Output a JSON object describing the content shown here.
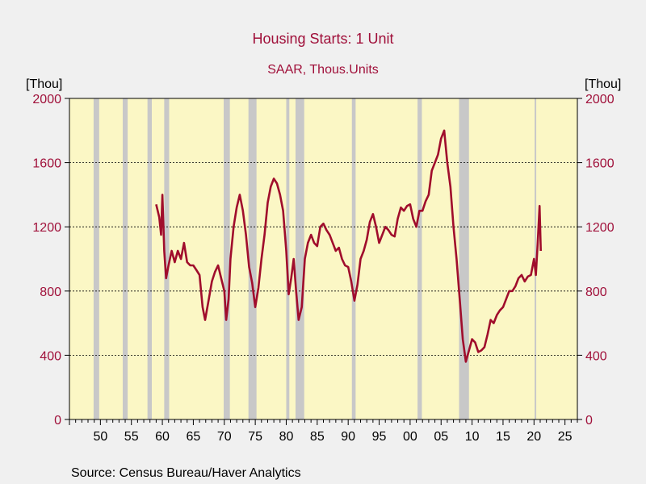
{
  "chart_data": {
    "type": "line",
    "title": "Housing Starts: 1 Unit",
    "subtitle": "SAAR, Thous.Units",
    "ylabel_left": "[Thou]",
    "ylabel_right": "[Thou]",
    "ylim": [
      0,
      2000
    ],
    "yticks": [
      0,
      400,
      800,
      1200,
      1600,
      2000
    ],
    "ytick_labels": [
      "0",
      "400",
      "800",
      "1200",
      "1600",
      "2000"
    ],
    "xlim": [
      1945,
      2027
    ],
    "xticks": [
      1950,
      1955,
      1960,
      1965,
      1970,
      1975,
      1980,
      1985,
      1990,
      1995,
      2000,
      2005,
      2010,
      2015,
      2020,
      2025
    ],
    "xtick_labels": [
      "50",
      "55",
      "60",
      "65",
      "70",
      "75",
      "80",
      "85",
      "90",
      "95",
      "00",
      "05",
      "10",
      "15",
      "20",
      "25"
    ],
    "grid": "horizontal-dotted",
    "recessions": [
      [
        1948.9,
        1949.8
      ],
      [
        1953.6,
        1954.4
      ],
      [
        1957.6,
        1958.3
      ],
      [
        1960.3,
        1961.1
      ],
      [
        1969.9,
        1970.9
      ],
      [
        1973.9,
        1975.2
      ],
      [
        1980.0,
        1980.5
      ],
      [
        1981.5,
        1982.9
      ],
      [
        1990.6,
        1991.2
      ],
      [
        2001.2,
        2001.9
      ],
      [
        2007.9,
        2009.5
      ],
      [
        2020.1,
        2020.3
      ]
    ],
    "series": [
      {
        "name": "",
        "x": [
          1959.0,
          1959.5,
          1959.8,
          1960.0,
          1960.3,
          1960.6,
          1961.0,
          1961.5,
          1962.0,
          1962.5,
          1963.0,
          1963.5,
          1964.0,
          1964.5,
          1965.0,
          1965.5,
          1966.0,
          1966.5,
          1966.9,
          1967.5,
          1968.0,
          1968.5,
          1969.0,
          1969.5,
          1970.0,
          1970.3,
          1970.7,
          1971.0,
          1971.5,
          1972.0,
          1972.5,
          1973.0,
          1973.5,
          1974.0,
          1974.5,
          1975.0,
          1975.5,
          1976.0,
          1976.5,
          1977.0,
          1977.5,
          1978.0,
          1978.5,
          1979.0,
          1979.5,
          1980.0,
          1980.4,
          1980.8,
          1981.2,
          1981.6,
          1982.0,
          1982.5,
          1983.0,
          1983.5,
          1984.0,
          1984.5,
          1985.0,
          1985.5,
          1986.0,
          1986.5,
          1987.0,
          1987.5,
          1988.0,
          1988.5,
          1989.0,
          1989.5,
          1990.0,
          1990.5,
          1991.0,
          1991.5,
          1992.0,
          1992.5,
          1993.0,
          1993.5,
          1994.0,
          1994.5,
          1995.0,
          1995.5,
          1996.0,
          1996.5,
          1997.0,
          1997.5,
          1998.0,
          1998.5,
          1999.0,
          1999.5,
          2000.0,
          2000.5,
          2001.0,
          2001.5,
          2002.0,
          2002.5,
          2003.0,
          2003.5,
          2004.0,
          2004.5,
          2005.0,
          2005.5,
          2006.0,
          2006.5,
          2007.0,
          2007.5,
          2008.0,
          2008.5,
          2009.0,
          2009.5,
          2010.0,
          2010.5,
          2011.0,
          2011.5,
          2012.0,
          2012.5,
          2013.0,
          2013.5,
          2014.0,
          2014.5,
          2015.0,
          2015.5,
          2016.0,
          2016.5,
          2017.0,
          2017.5,
          2018.0,
          2018.5,
          2019.0,
          2019.5,
          2020.0,
          2020.3,
          2020.6,
          2020.9,
          2021.1
        ],
        "values": [
          1340,
          1260,
          1150,
          1400,
          1050,
          880,
          960,
          1050,
          980,
          1050,
          1000,
          1100,
          980,
          960,
          960,
          930,
          900,
          700,
          620,
          750,
          860,
          920,
          960,
          880,
          800,
          620,
          750,
          1000,
          1200,
          1320,
          1400,
          1300,
          1150,
          950,
          850,
          700,
          820,
          1000,
          1150,
          1350,
          1450,
          1500,
          1470,
          1400,
          1300,
          1050,
          780,
          880,
          1000,
          800,
          620,
          700,
          1000,
          1100,
          1150,
          1100,
          1080,
          1200,
          1220,
          1180,
          1150,
          1100,
          1050,
          1070,
          1000,
          960,
          950,
          860,
          740,
          840,
          1000,
          1050,
          1120,
          1230,
          1280,
          1200,
          1100,
          1150,
          1200,
          1180,
          1150,
          1140,
          1250,
          1320,
          1300,
          1330,
          1340,
          1250,
          1200,
          1300,
          1300,
          1360,
          1400,
          1550,
          1600,
          1650,
          1750,
          1800,
          1600,
          1450,
          1200,
          1000,
          750,
          500,
          360,
          430,
          500,
          480,
          420,
          430,
          450,
          530,
          620,
          600,
          650,
          680,
          700,
          750,
          800,
          800,
          830,
          880,
          900,
          860,
          890,
          900,
          1000,
          900,
          1100,
          1330,
          1050
        ]
      }
    ]
  },
  "source_text": "Source:  Census Bureau/Haver Analytics",
  "colors": {
    "background": "#f0f0f0",
    "plot_area": "#fbf7c5",
    "recession_band": "#c8c8c8",
    "series_line": "#a00d2c",
    "title_text": "#a0103a",
    "axis_tick_text": "#a0103a",
    "grid": "#000000"
  }
}
